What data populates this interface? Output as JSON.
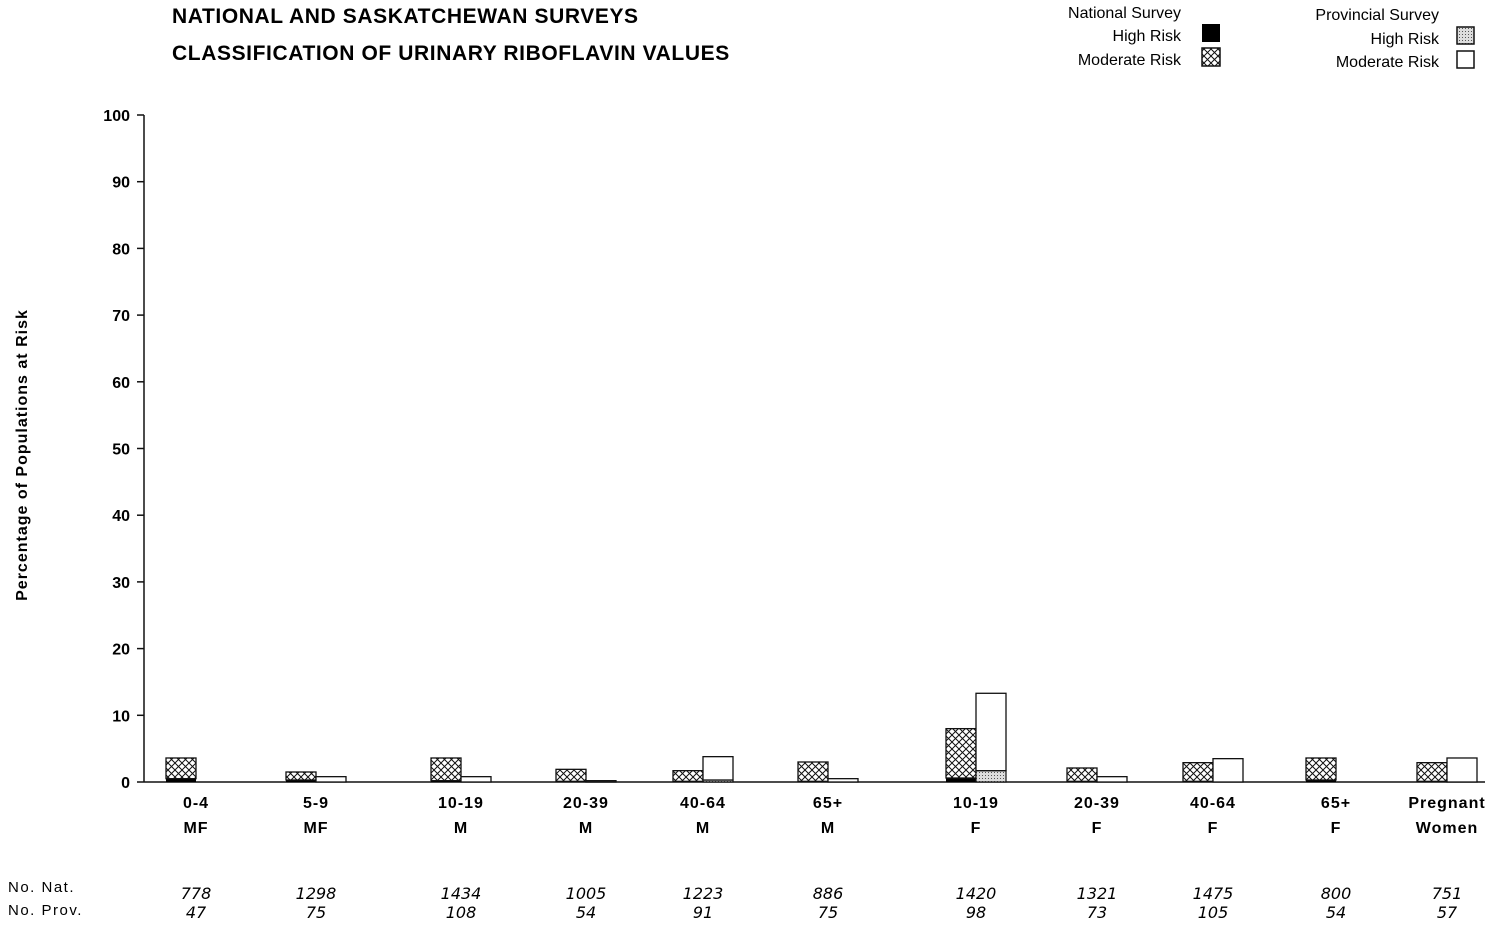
{
  "chart_data": {
    "type": "bar",
    "title_lines": [
      "NATIONAL AND SASKATCHEWAN SURVEYS",
      "CLASSIFICATION OF URINARY RIBOFLAVIN VALUES"
    ],
    "ylabel": "Percentage of Populations at Risk",
    "ylim": [
      0,
      100
    ],
    "yticks": [
      0,
      10,
      20,
      30,
      40,
      50,
      60,
      70,
      80,
      90,
      100
    ],
    "categories": [
      {
        "age": "0-4",
        "group": "MF"
      },
      {
        "age": "5-9",
        "group": "MF"
      },
      {
        "age": "10-19",
        "group": "M"
      },
      {
        "age": "20-39",
        "group": "M"
      },
      {
        "age": "40-64",
        "group": "M"
      },
      {
        "age": "65+",
        "group": "M"
      },
      {
        "age": "10-19",
        "group": "F"
      },
      {
        "age": "20-39",
        "group": "F"
      },
      {
        "age": "40-64",
        "group": "F"
      },
      {
        "age": "65+",
        "group": "F"
      },
      {
        "age": "Pregnant",
        "group": "Women"
      }
    ],
    "legend": {
      "national": {
        "heading": "National Survey",
        "high": "High Risk",
        "moderate": "Moderate Risk"
      },
      "provincial": {
        "heading": "Provincial Survey",
        "high": "High Risk",
        "moderate": "Moderate Risk"
      }
    },
    "series": [
      {
        "name": "National Survey High Risk",
        "values": [
          0.5,
          0.3,
          0.2,
          0.1,
          0.1,
          0.1,
          0.6,
          0.1,
          0.1,
          0.3,
          0.1
        ]
      },
      {
        "name": "National Survey Moderate Risk",
        "values": [
          3.1,
          1.2,
          3.4,
          1.8,
          1.6,
          2.9,
          7.4,
          2.0,
          2.8,
          3.3,
          2.8
        ]
      },
      {
        "name": "Provincial Survey High Risk",
        "values": [
          0,
          0,
          0,
          0,
          0.3,
          0,
          1.7,
          0,
          0,
          0,
          0
        ]
      },
      {
        "name": "Provincial Survey Moderate Risk",
        "values": [
          0,
          0.8,
          0.8,
          0.2,
          3.5,
          0.5,
          11.6,
          0.8,
          3.5,
          0,
          3.6
        ]
      }
    ],
    "counts": {
      "national_label": "No. Nat.",
      "provincial_label": "No. Prov.",
      "national": [
        "778",
        "1298",
        "1434",
        "1005",
        "1223",
        "886",
        "1420",
        "1321",
        "1475",
        "800",
        "751"
      ],
      "provincial": [
        "47",
        "75",
        "108",
        "54",
        "91",
        "75",
        "98",
        "73",
        "105",
        "54",
        "57"
      ]
    },
    "grid": false,
    "legend_placement": "top-right"
  }
}
